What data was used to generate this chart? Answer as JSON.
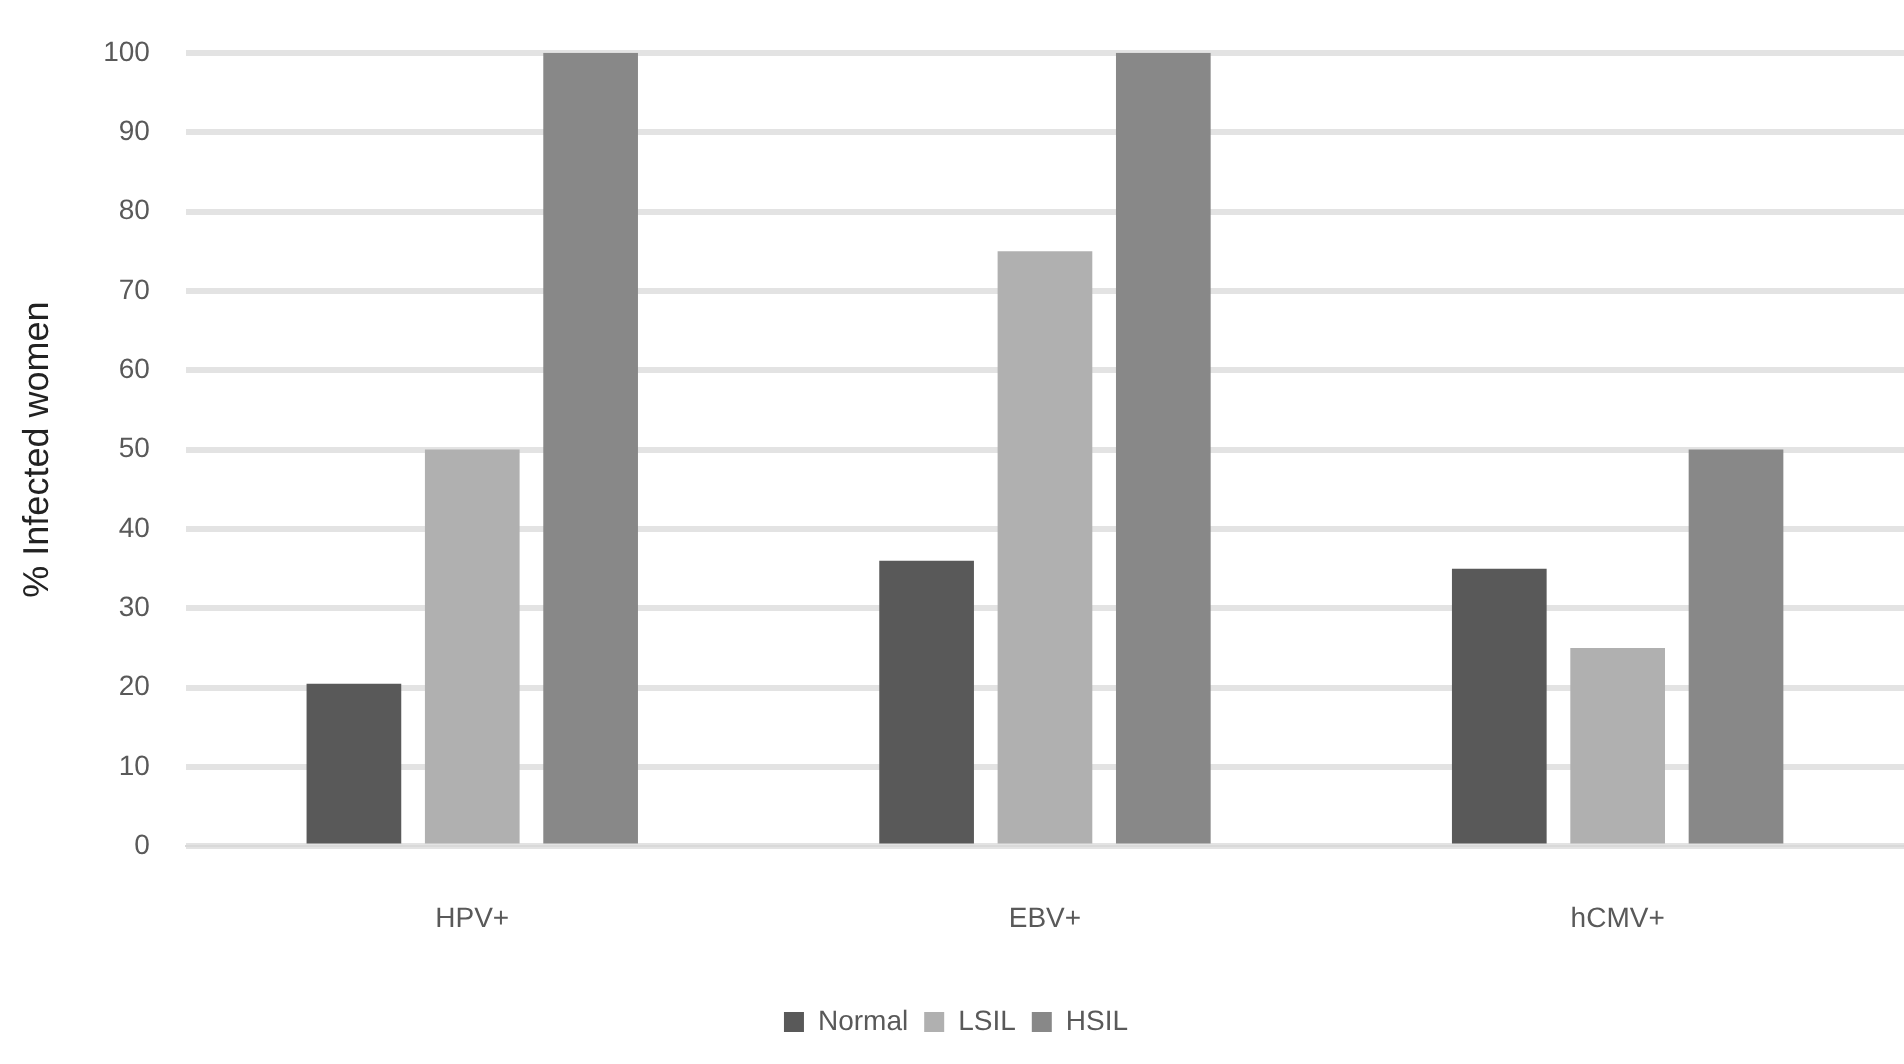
{
  "chart_data": {
    "type": "bar",
    "ylabel": "% Infected women",
    "categories": [
      "HPV+",
      "EBV+",
      "hCMV+"
    ],
    "series": [
      {
        "name": "Normal",
        "color": "#595959",
        "values": [
          20.5,
          36,
          35
        ]
      },
      {
        "name": "LSIL",
        "color": "#b0b0b0",
        "values": [
          50,
          75,
          25
        ]
      },
      {
        "name": "HSIL",
        "color": "#888888",
        "values": [
          100,
          100,
          50
        ]
      }
    ],
    "ylim": [
      0,
      100
    ],
    "yticks": [
      0,
      10,
      20,
      30,
      40,
      50,
      60,
      70,
      80,
      90,
      100
    ],
    "grid": "y",
    "legend": "bottom"
  }
}
